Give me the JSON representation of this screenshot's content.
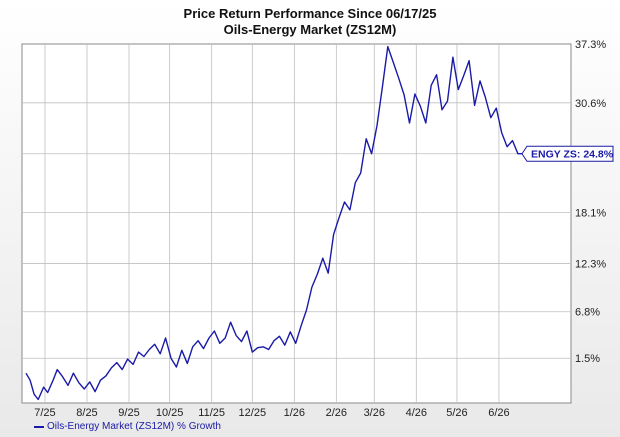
{
  "title": "Price Return Performance Since 06/17/25",
  "subtitle": "Oils-Energy Market (ZS12M)",
  "legend_label": "Oils-Energy Market (ZS12M) % Growth",
  "end_label": "ENGY ZS: 24.8%",
  "colors": {
    "line": "#1a1aa8",
    "grid": "#bfbfbf",
    "background": "#ffffff"
  },
  "chart_data": {
    "type": "line",
    "title": "Price Return Performance Since 06/17/25",
    "subtitle": "Oils-Energy Market (ZS12M)",
    "x_tick_labels": [
      "7/25",
      "8/25",
      "9/25",
      "10/25",
      "11/25",
      "12/25",
      "1/26",
      "2/26",
      "3/26",
      "4/26",
      "5/26",
      "6/26"
    ],
    "y_tick_labels": [
      "1.5%",
      "6.8%",
      "12.3%",
      "18.1%",
      "24.8%",
      "30.6%",
      "37.3%"
    ],
    "y_ticks": [
      1.5,
      6.8,
      12.3,
      18.1,
      24.8,
      30.6,
      37.3
    ],
    "ylim": [
      -3.6,
      37.3
    ],
    "grid": true,
    "legend": "bottom-left",
    "series": [
      {
        "name": "Oils-Energy Market (ZS12M) % Growth",
        "x": [
          "2025-06-17",
          "2025-06-20",
          "2025-06-23",
          "2025-06-26",
          "2025-06-30",
          "2025-07-03",
          "2025-07-07",
          "2025-07-10",
          "2025-07-14",
          "2025-07-18",
          "2025-07-22",
          "2025-07-26",
          "2025-07-30",
          "2025-08-03",
          "2025-08-07",
          "2025-08-11",
          "2025-08-15",
          "2025-08-19",
          "2025-08-23",
          "2025-08-27",
          "2025-08-31",
          "2025-09-04",
          "2025-09-08",
          "2025-09-12",
          "2025-09-16",
          "2025-09-20",
          "2025-09-24",
          "2025-09-28",
          "2025-10-02",
          "2025-10-06",
          "2025-10-10",
          "2025-10-14",
          "2025-10-18",
          "2025-10-22",
          "2025-10-26",
          "2025-10-30",
          "2025-11-03",
          "2025-11-07",
          "2025-11-11",
          "2025-11-15",
          "2025-11-19",
          "2025-11-23",
          "2025-11-27",
          "2025-12-01",
          "2025-12-05",
          "2025-12-09",
          "2025-12-13",
          "2025-12-17",
          "2025-12-21",
          "2025-12-25",
          "2025-12-29",
          "2026-01-02",
          "2026-01-06",
          "2026-01-10",
          "2026-01-14",
          "2026-01-18",
          "2026-01-22",
          "2026-01-26",
          "2026-01-30",
          "2026-02-03",
          "2026-02-07",
          "2026-02-11",
          "2026-02-15",
          "2026-02-19",
          "2026-02-23",
          "2026-02-27",
          "2026-03-03",
          "2026-03-07",
          "2026-03-11",
          "2026-03-15",
          "2026-03-19",
          "2026-03-23",
          "2026-03-27",
          "2026-03-31",
          "2026-04-04",
          "2026-04-08",
          "2026-04-12",
          "2026-04-16",
          "2026-04-20",
          "2026-04-24",
          "2026-04-28",
          "2026-05-02",
          "2026-05-06",
          "2026-05-10",
          "2026-05-14",
          "2026-05-18",
          "2026-05-22",
          "2026-05-26",
          "2026-05-30",
          "2026-06-03",
          "2026-06-07",
          "2026-06-11",
          "2026-06-15",
          "2026-06-18"
        ],
        "values": [
          -0.2,
          -1.0,
          -2.6,
          -3.2,
          -1.8,
          -2.4,
          -1.0,
          0.2,
          -0.6,
          -1.6,
          -0.2,
          -1.3,
          -2.0,
          -1.2,
          -2.3,
          -1.0,
          -0.5,
          0.4,
          1.0,
          0.2,
          1.4,
          0.8,
          2.2,
          1.7,
          2.5,
          3.1,
          2.0,
          3.8,
          1.5,
          0.5,
          2.4,
          0.9,
          2.8,
          3.5,
          2.6,
          3.8,
          4.6,
          3.2,
          3.8,
          5.6,
          4.1,
          3.4,
          4.6,
          2.2,
          2.7,
          2.8,
          2.5,
          3.5,
          4.0,
          3.0,
          4.5,
          3.2,
          5.2,
          7.0,
          9.6,
          11.1,
          12.9,
          11.2,
          15.6,
          17.5,
          19.3,
          18.4,
          21.5,
          22.6,
          26.5,
          24.8,
          28.0,
          32.4,
          37.0,
          35.2,
          33.4,
          31.5,
          28.3,
          31.6,
          30.2,
          28.3,
          32.6,
          33.8,
          29.8,
          30.8,
          35.8,
          32.1,
          33.7,
          35.4,
          30.3,
          33.1,
          31.2,
          28.9,
          30.0,
          27.2,
          25.6,
          26.3,
          24.8,
          24.8
        ]
      }
    ]
  }
}
